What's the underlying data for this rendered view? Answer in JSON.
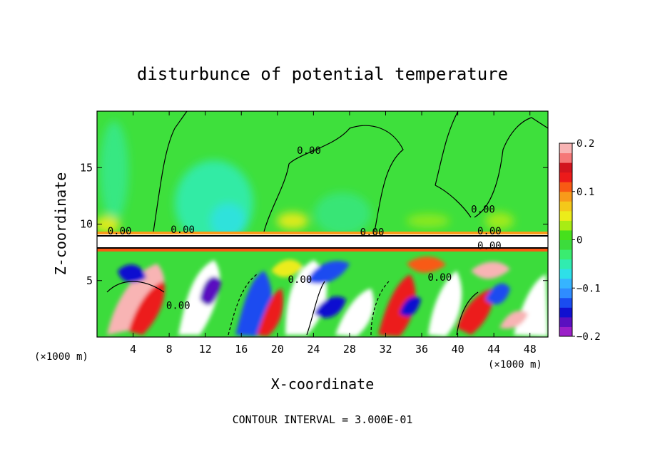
{
  "chart_data": {
    "type": "heatmap",
    "title": "disturbunce of potential temperature",
    "xlabel": "X-coordinate",
    "ylabel": "Z-coordinate",
    "x_unit_left": "(×1000 m)",
    "x_unit_right": "(×1000 m)",
    "footer": "CONTOUR INTERVAL = 3.000E-01",
    "xlim": [
      0,
      50
    ],
    "ylim": [
      0,
      20
    ],
    "x_ticks": [
      4,
      8,
      12,
      16,
      20,
      24,
      28,
      32,
      36,
      40,
      44,
      48
    ],
    "y_ticks": [
      5,
      10,
      15
    ],
    "colorbar": {
      "min": -0.2,
      "max": 0.2,
      "ticks": [
        {
          "value": 0.2,
          "label": "0.2"
        },
        {
          "value": 0.1,
          "label": "0.1"
        },
        {
          "value": 0,
          "label": "0"
        },
        {
          "value": -0.1,
          "label": "−0.1"
        },
        {
          "value": -0.2,
          "label": "−0.2"
        }
      ],
      "colors": [
        "#9b20c8",
        "#5a10c0",
        "#1010d0",
        "#1a4cf0",
        "#2f8cff",
        "#36b4ff",
        "#2ee0e8",
        "#30ecb0",
        "#3aec70",
        "#3cdc3c",
        "#46e01c",
        "#a8ec14",
        "#ecec1a",
        "#f4c81a",
        "#f89a1a",
        "#f85a14",
        "#ec1a1a",
        "#d2141e",
        "#f57878",
        "#f8b4b4"
      ]
    },
    "contour_labels": [
      {
        "text": "0.00",
        "x": 23.5,
        "z": 16.2
      },
      {
        "text": "0.00",
        "x": 42.8,
        "z": 11.0
      },
      {
        "text": "0.00",
        "x": 2.5,
        "z": 9.1
      },
      {
        "text": "0.00",
        "x": 9.5,
        "z": 9.2
      },
      {
        "text": "0.00",
        "x": 30.5,
        "z": 9.0
      },
      {
        "text": "0.00",
        "x": 43.5,
        "z": 9.1
      },
      {
        "text": "0.00",
        "x": 43.5,
        "z": 7.8
      },
      {
        "text": "0.00",
        "x": 9.0,
        "z": 2.5
      },
      {
        "text": "0.00",
        "x": 22.5,
        "z": 4.8
      },
      {
        "text": "0.00",
        "x": 38.0,
        "z": 5.0
      }
    ]
  }
}
